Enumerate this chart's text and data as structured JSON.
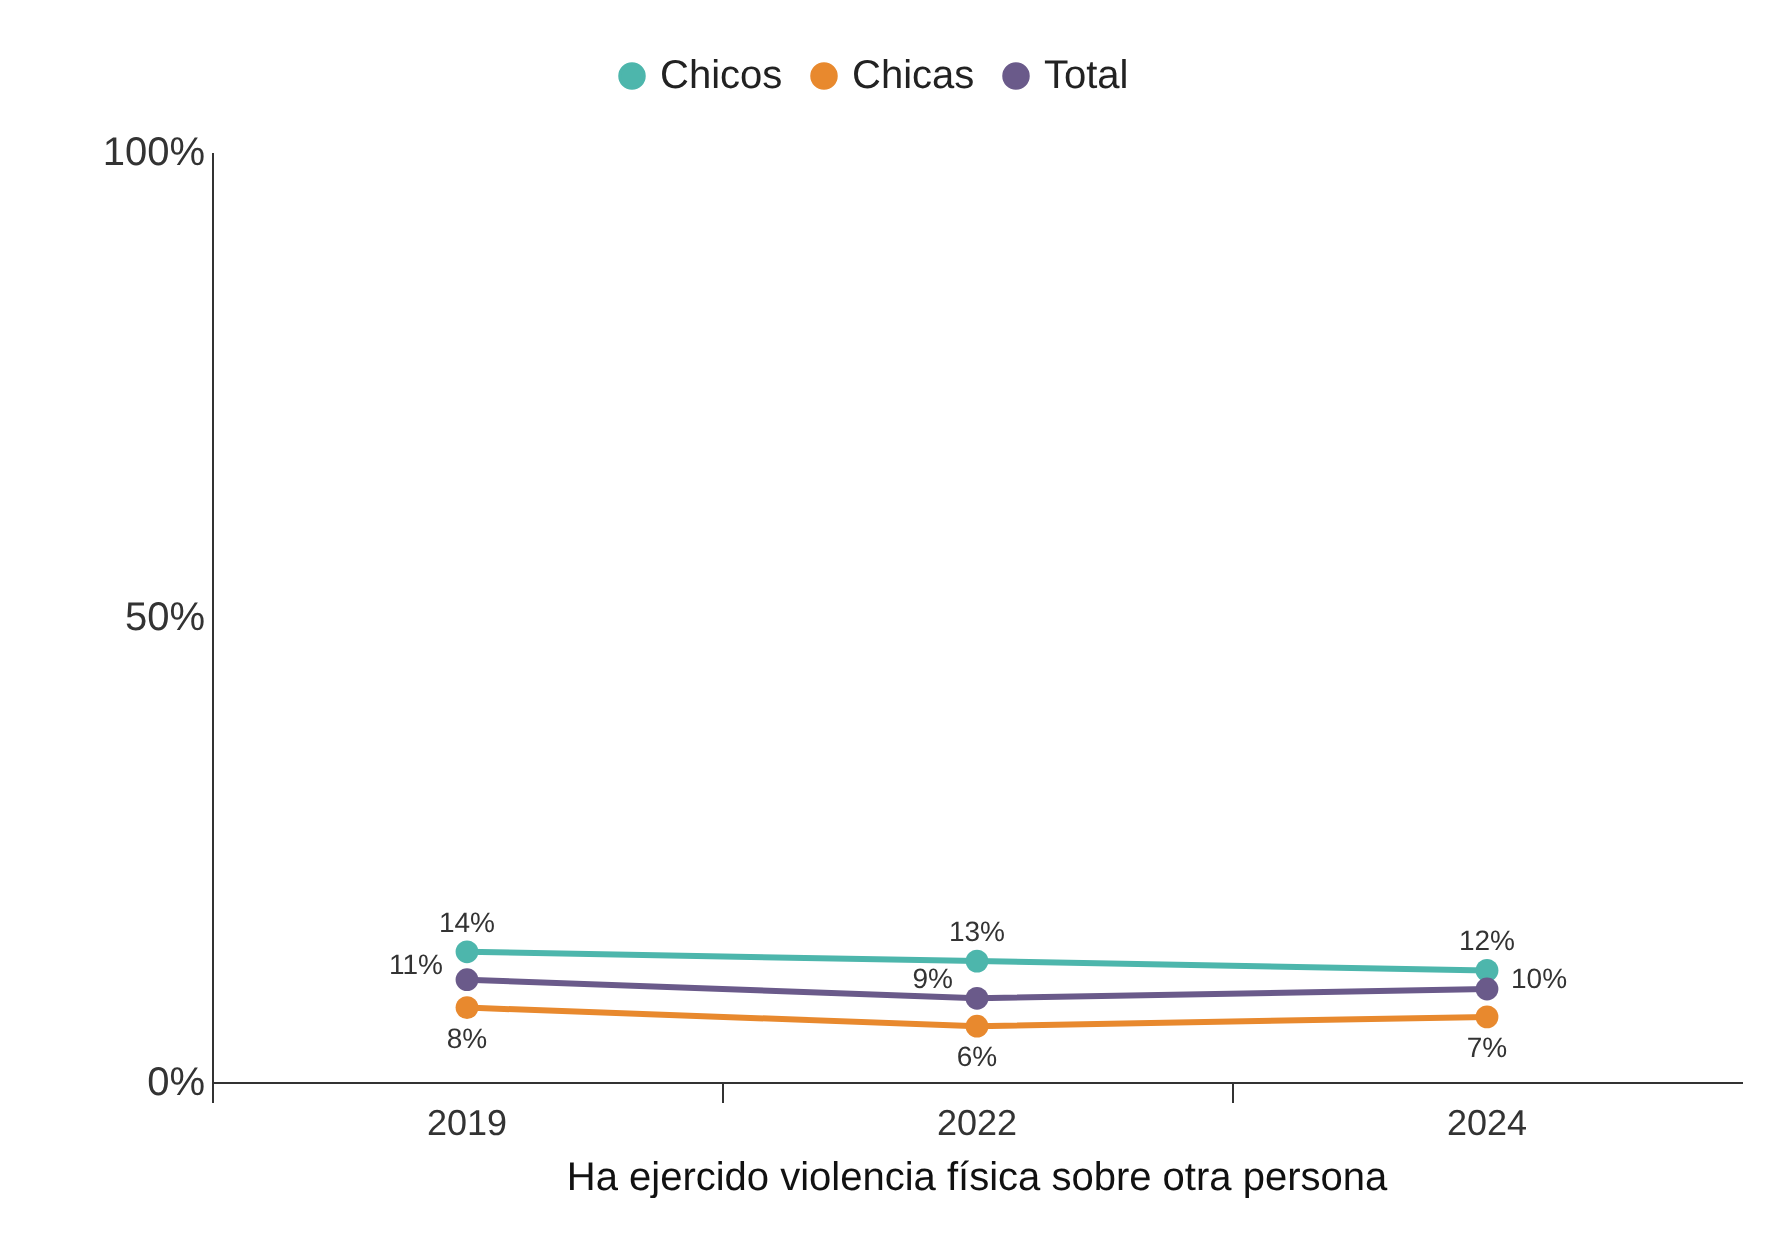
{
  "chart_data": {
    "type": "line",
    "xlabel": "Ha ejercido violencia física sobre otra persona",
    "categories": [
      "2019",
      "2022",
      "2024"
    ],
    "series": [
      {
        "name": "Chicos",
        "color": "#4db6ac",
        "values": [
          14,
          13,
          12
        ],
        "value_labels": [
          "14%",
          "13%",
          "12%"
        ]
      },
      {
        "name": "Chicas",
        "color": "#e8892e",
        "values": [
          8,
          6,
          7
        ],
        "value_labels": [
          "8%",
          "6%",
          "7%"
        ]
      },
      {
        "name": "Total",
        "color": "#6a5a8a",
        "values": [
          11,
          9,
          10
        ],
        "value_labels": [
          "11%",
          "9%",
          "10%"
        ]
      }
    ],
    "ylim": [
      0,
      100
    ],
    "yticks": [
      {
        "value": 0,
        "label": "0%"
      },
      {
        "value": 50,
        "label": "50%"
      },
      {
        "value": 100,
        "label": "100%"
      }
    ],
    "legend": "top",
    "marker": "circle",
    "grid": false
  }
}
